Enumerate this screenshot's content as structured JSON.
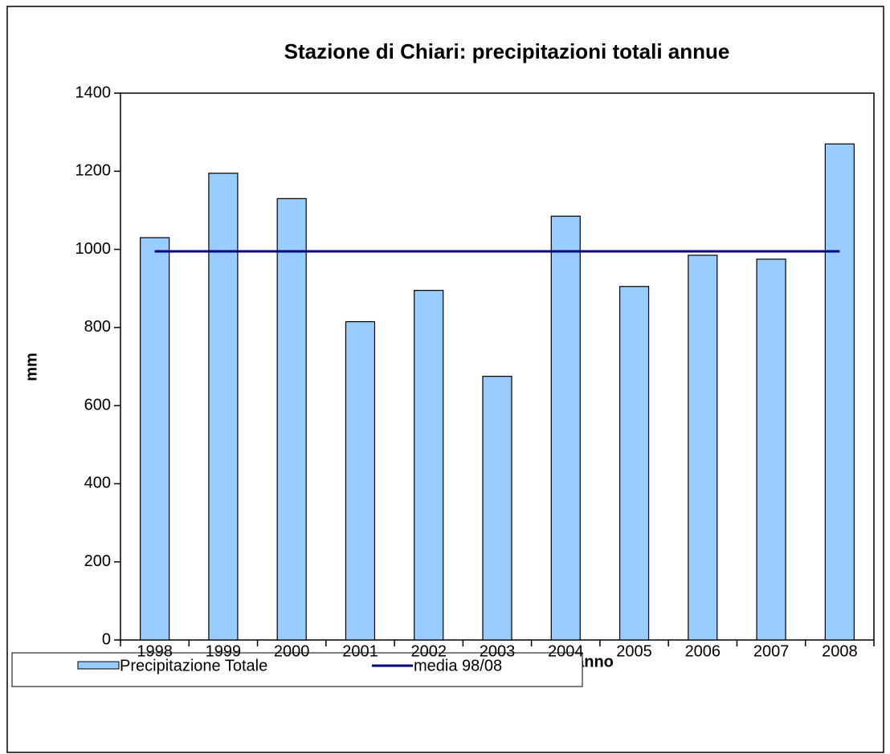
{
  "chart_data": {
    "type": "bar",
    "title": "Stazione di Chiari: precipitazioni totali annue",
    "x_label": "anno",
    "y_label": "mm",
    "categories": [
      "1998",
      "1999",
      "2000",
      "2001",
      "2002",
      "2003",
      "2004",
      "2005",
      "2006",
      "2007",
      "2008"
    ],
    "series": [
      {
        "name": "Precipitazione Totale",
        "type": "bar",
        "color": "#99ccff",
        "values": [
          1030,
          1195,
          1130,
          815,
          895,
          675,
          1085,
          905,
          985,
          975,
          1270
        ]
      },
      {
        "name": "media 98/08",
        "type": "line",
        "color": "#000080",
        "values": [
          995,
          995,
          995,
          995,
          995,
          995,
          995,
          995,
          995,
          995,
          995
        ]
      }
    ],
    "ylim": [
      0,
      1400
    ],
    "yticks": [
      0,
      200,
      400,
      600,
      800,
      1000,
      1200,
      1400
    ],
    "grid": false
  }
}
